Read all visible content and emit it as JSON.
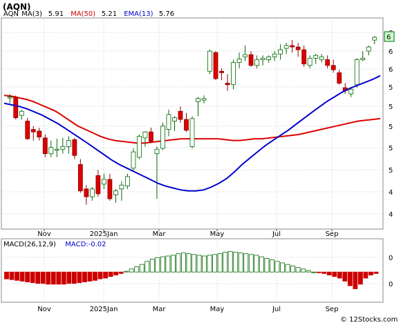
{
  "title": "(AQN)",
  "footer": "© 12Stocks.com",
  "price_panel": {
    "legend": [
      {
        "text": "AQN",
        "color": "#000000"
      },
      {
        "text": "MA(3)",
        "color": "#000000"
      },
      {
        "text": "5.91",
        "color": "#000000"
      },
      {
        "text": "MA(50)",
        "color": "#cc0000"
      },
      {
        "text": "5.21",
        "color": "#000000"
      },
      {
        "text": "EMA(13)",
        "color": "#0000cc"
      },
      {
        "text": "5.76",
        "color": "#000000"
      }
    ],
    "last_price_label": "6"
  },
  "macd_panel": {
    "legend": [
      {
        "text": "MACD(26,12,9)",
        "color": "#000000"
      },
      {
        "text": "MACD:-0.02",
        "color": "#0000cc"
      }
    ]
  },
  "colors": {
    "up_candle": "#ffffff",
    "up_border": "#006600",
    "down_candle": "#dd0000",
    "ma50": "#dd0000",
    "ma_blue": "#0000cc",
    "macd_pos": "#ffffff",
    "macd_pos_border": "#006600",
    "macd_neg": "#cc0000",
    "grid": "#cccccc",
    "last_box": "#ccffcc"
  },
  "chart_data": [
    {
      "type": "candlestick",
      "title": "(AQN)",
      "x_tick_labels": [
        "Nov",
        "2025Jan",
        "Mar",
        "May",
        "Jul",
        "Sep"
      ],
      "y_tick_labels": [
        "6",
        "6",
        "6",
        "5",
        "5",
        "5",
        "5",
        "5",
        "4",
        "4"
      ],
      "y_scale": "log",
      "ylim": [
        4.05,
        6.55
      ],
      "grid": true,
      "candles": [
        [
          5.48,
          5.52,
          5.4,
          5.48
        ],
        [
          5.48,
          5.5,
          5.2,
          5.22
        ],
        [
          5.25,
          5.32,
          5.2,
          5.3
        ],
        [
          5.18,
          5.22,
          4.96,
          4.97
        ],
        [
          5.08,
          5.12,
          4.95,
          5.05
        ],
        [
          5.06,
          5.1,
          4.95,
          4.99
        ],
        [
          4.98,
          5.02,
          4.76,
          4.8
        ],
        [
          4.8,
          4.95,
          4.76,
          4.87
        ],
        [
          4.84,
          4.97,
          4.76,
          4.85
        ],
        [
          4.85,
          4.98,
          4.8,
          4.88
        ],
        [
          4.88,
          5.0,
          4.8,
          4.95
        ],
        [
          4.96,
          4.98,
          4.74,
          4.78
        ],
        [
          4.68,
          4.74,
          4.38,
          4.4
        ],
        [
          4.42,
          4.46,
          4.26,
          4.34
        ],
        [
          4.34,
          4.44,
          4.3,
          4.42
        ],
        [
          4.56,
          4.62,
          4.34,
          4.37
        ],
        [
          4.47,
          4.58,
          4.42,
          4.52
        ],
        [
          4.52,
          4.58,
          4.3,
          4.32
        ],
        [
          4.36,
          4.42,
          4.28,
          4.4
        ],
        [
          4.42,
          4.5,
          4.3,
          4.46
        ],
        [
          4.45,
          4.58,
          4.42,
          4.55
        ],
        [
          4.64,
          4.86,
          4.6,
          4.82
        ],
        [
          4.76,
          5.02,
          4.74,
          5.0
        ],
        [
          4.98,
          5.06,
          4.88,
          5.05
        ],
        [
          5.05,
          5.1,
          4.92,
          4.94
        ],
        [
          4.8,
          4.88,
          4.32,
          4.85
        ],
        [
          4.86,
          5.16,
          4.84,
          5.12
        ],
        [
          5.08,
          5.32,
          5.0,
          5.26
        ],
        [
          5.18,
          5.24,
          5.06,
          5.22
        ],
        [
          5.3,
          5.36,
          5.16,
          5.2
        ],
        [
          5.2,
          5.28,
          5.05,
          5.07
        ],
        [
          4.88,
          5.24,
          4.86,
          5.21
        ],
        [
          5.42,
          5.48,
          5.24,
          5.46
        ],
        [
          5.44,
          5.5,
          5.4,
          5.46
        ],
        [
          5.82,
          6.12,
          5.78,
          6.1
        ],
        [
          6.08,
          6.1,
          5.7,
          5.72
        ],
        [
          5.82,
          5.86,
          5.7,
          5.8
        ],
        [
          5.66,
          5.78,
          5.56,
          5.64
        ],
        [
          5.64,
          5.98,
          5.58,
          5.94
        ],
        [
          5.94,
          6.08,
          5.86,
          5.99
        ],
        [
          6.02,
          6.18,
          5.96,
          6.05
        ],
        [
          6.05,
          6.1,
          5.88,
          5.9
        ],
        [
          5.9,
          6.04,
          5.86,
          5.98
        ],
        [
          5.98,
          6.04,
          5.9,
          6.0
        ],
        [
          5.98,
          6.04,
          5.94,
          6.02
        ],
        [
          6.02,
          6.1,
          5.96,
          6.06
        ],
        [
          6.06,
          6.2,
          5.98,
          6.12
        ],
        [
          6.14,
          6.22,
          6.06,
          6.18
        ],
        [
          6.18,
          6.26,
          6.08,
          6.16
        ],
        [
          6.16,
          6.22,
          6.02,
          6.12
        ],
        [
          6.12,
          6.18,
          5.88,
          5.92
        ],
        [
          5.9,
          6.04,
          5.86,
          6.0
        ],
        [
          6.0,
          6.06,
          5.92,
          6.04
        ],
        [
          5.98,
          6.06,
          5.94,
          6.02
        ],
        [
          5.98,
          6.04,
          5.86,
          5.9
        ],
        [
          5.9,
          5.98,
          5.8,
          5.84
        ],
        [
          5.8,
          5.84,
          5.64,
          5.66
        ],
        [
          5.6,
          5.66,
          5.52,
          5.56
        ],
        [
          5.52,
          5.6,
          5.48,
          5.58
        ],
        [
          5.64,
          6.0,
          5.6,
          5.98
        ],
        [
          5.98,
          6.1,
          5.96,
          6.0
        ],
        [
          6.1,
          6.18,
          6.04,
          6.16
        ],
        [
          6.26,
          6.32,
          6.2,
          6.3
        ]
      ],
      "series": [
        {
          "name": "MA(50)",
          "values": [
            5.5,
            5.49,
            5.47,
            5.45,
            5.42,
            5.38,
            5.34,
            5.3,
            5.24,
            5.18,
            5.12,
            5.08,
            5.04,
            5.0,
            4.97,
            4.95,
            4.94,
            4.93,
            4.92,
            4.92,
            4.93,
            4.94,
            4.95,
            4.96,
            4.97,
            4.97,
            4.97,
            4.97,
            4.97,
            4.97,
            4.96,
            4.95,
            4.95,
            4.96,
            4.97,
            4.97,
            4.98,
            4.99,
            5.0,
            5.01,
            5.02,
            5.04,
            5.06,
            5.08,
            5.1,
            5.12,
            5.14,
            5.16,
            5.18,
            5.19,
            5.2,
            5.21
          ]
        },
        {
          "name": "EMA(13)",
          "values": [
            5.4,
            5.38,
            5.36,
            5.33,
            5.29,
            5.25,
            5.2,
            5.15,
            5.09,
            5.03,
            4.97,
            4.91,
            4.85,
            4.79,
            4.73,
            4.68,
            4.64,
            4.6,
            4.56,
            4.52,
            4.48,
            4.45,
            4.43,
            4.41,
            4.4,
            4.4,
            4.41,
            4.44,
            4.48,
            4.53,
            4.6,
            4.68,
            4.75,
            4.82,
            4.89,
            4.95,
            5.01,
            5.07,
            5.14,
            5.21,
            5.28,
            5.35,
            5.42,
            5.48,
            5.54,
            5.59,
            5.63,
            5.67,
            5.71,
            5.76
          ]
        }
      ]
    },
    {
      "type": "bar",
      "title": "MACD(26,12,9)",
      "x_tick_labels": [
        "Nov",
        "2025Jan",
        "Mar",
        "May",
        "Jul",
        "Sep"
      ],
      "y_tick_labels": [
        "0",
        "0"
      ],
      "ylim": [
        -0.36,
        0.4
      ],
      "series": [
        {
          "name": "MACD:-0.02",
          "values": [
            -0.09,
            -0.1,
            -0.11,
            -0.12,
            -0.13,
            -0.14,
            -0.15,
            -0.15,
            -0.16,
            -0.16,
            -0.16,
            -0.16,
            -0.15,
            -0.15,
            -0.14,
            -0.13,
            -0.12,
            -0.11,
            -0.09,
            -0.08,
            -0.06,
            -0.04,
            -0.02,
            0.01,
            0.04,
            0.07,
            0.1,
            0.14,
            0.17,
            0.19,
            0.2,
            0.21,
            0.22,
            0.24,
            0.25,
            0.24,
            0.23,
            0.22,
            0.21,
            0.22,
            0.23,
            0.24,
            0.26,
            0.27,
            0.26,
            0.25,
            0.24,
            0.23,
            0.22,
            0.2,
            0.18,
            0.16,
            0.14,
            0.12,
            0.1,
            0.08,
            0.06,
            0.04,
            0.02,
            0.0,
            -0.01,
            -0.02,
            -0.04,
            -0.06,
            -0.08,
            -0.12,
            -0.18,
            -0.22,
            -0.16,
            -0.08,
            -0.04,
            -0.02
          ]
        }
      ]
    }
  ]
}
